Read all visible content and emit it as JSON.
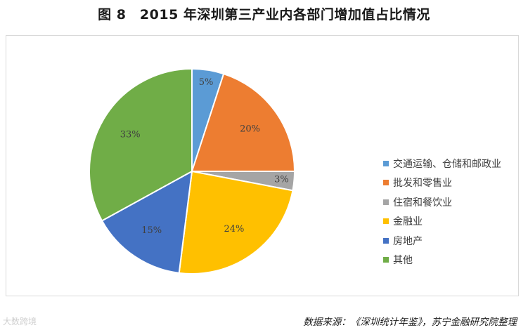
{
  "title": "图 8　2015 年深圳第三产业内各部门增加值占比情况",
  "source": "数据来源：《深圳统计年鉴》，苏宁金融研究院整理",
  "watermark": "大数跨境",
  "chart_data": {
    "type": "pie",
    "title": "图 8　2015 年深圳第三产业内各部门增加值占比情况",
    "start_angle": "12 o'clock",
    "direction": "clockwise",
    "legend_position": "right",
    "slices": [
      {
        "label": "交通运输、仓储和邮政业",
        "value": 5,
        "display": "5%",
        "color": "#5B9BD5"
      },
      {
        "label": "批发和零售业",
        "value": 20,
        "display": "20%",
        "color": "#ED7D31"
      },
      {
        "label": "住宿和餐饮业",
        "value": 3,
        "display": "3%",
        "color": "#A5A5A5"
      },
      {
        "label": "金融业",
        "value": 24,
        "display": "24%",
        "color": "#FFC000"
      },
      {
        "label": "房地产",
        "value": 15,
        "display": "15%",
        "color": "#4472C4"
      },
      {
        "label": "其他",
        "value": 33,
        "display": "33%",
        "color": "#70AD47"
      }
    ]
  }
}
